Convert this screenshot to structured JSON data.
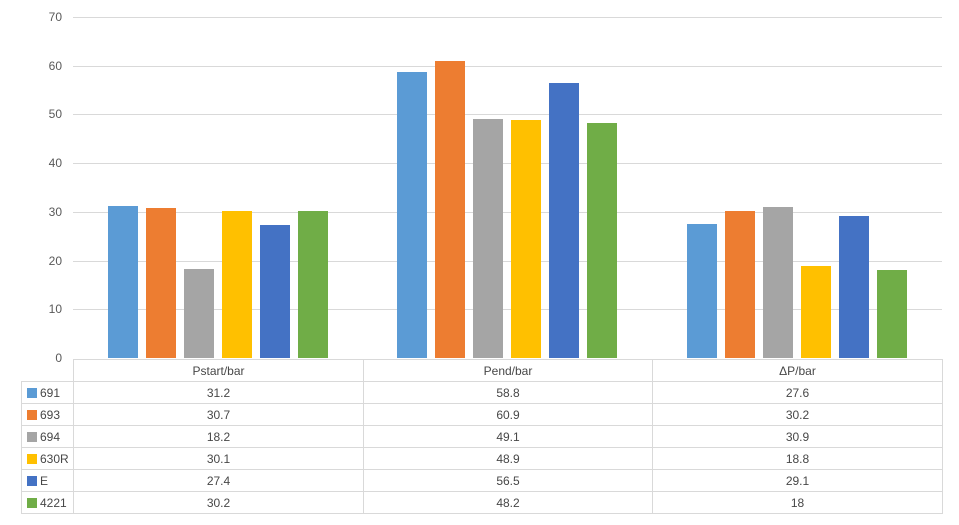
{
  "chart_data": {
    "type": "bar",
    "title": "",
    "categories": [
      "Pstart/bar",
      "Pend/bar",
      "ΔP/bar"
    ],
    "series": [
      {
        "name": "691",
        "color": "#5B9BD5",
        "values": [
          31.2,
          58.8,
          27.6
        ]
      },
      {
        "name": "693",
        "color": "#ED7D31",
        "values": [
          30.7,
          60.9,
          30.2
        ]
      },
      {
        "name": "694",
        "color": "#A5A5A5",
        "values": [
          18.2,
          49.1,
          30.9
        ]
      },
      {
        "name": "630R",
        "color": "#FFC000",
        "values": [
          30.1,
          48.9,
          18.8
        ]
      },
      {
        "name": "E",
        "color": "#4472C4",
        "values": [
          27.4,
          56.5,
          29.1
        ]
      },
      {
        "name": "4221",
        "color": "#70AD47",
        "values": [
          30.2,
          48.2,
          18
        ]
      }
    ],
    "xlabel": "",
    "ylabel": "",
    "ylim": [
      0,
      70
    ],
    "yticks": [
      0,
      10,
      20,
      30,
      40,
      50,
      60,
      70
    ],
    "grid": true,
    "legend_position": "data-table-left-keys",
    "data_table_shown": true
  },
  "colors": {
    "background": "#FFFFFF",
    "gridline": "#D9D9D9",
    "table_border": "#D9D9D9",
    "axis_text": "#595959",
    "table_text": "#474747"
  }
}
